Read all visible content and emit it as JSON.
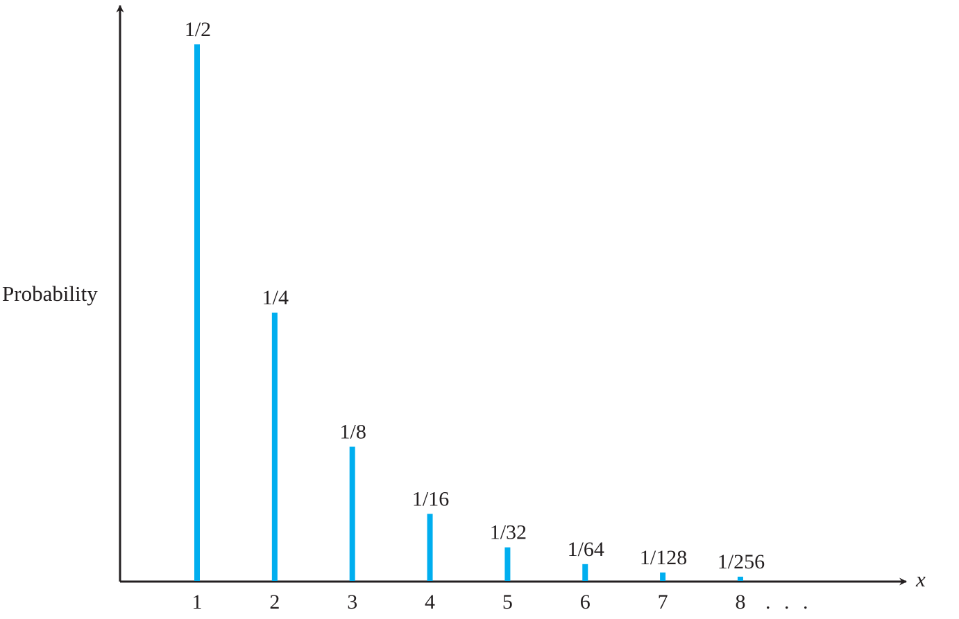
{
  "chart_data": {
    "type": "bar",
    "xlabel": "x",
    "ylabel": "Probability",
    "categories": [
      "1",
      "2",
      "3",
      "4",
      "5",
      "6",
      "7",
      "8"
    ],
    "continuation_marker": ". . .",
    "values": [
      0.5,
      0.25,
      0.125,
      0.0625,
      0.03125,
      0.015625,
      0.0078125,
      0.00390625
    ],
    "data_labels": [
      "1/2",
      "1/4",
      "1/8",
      "1/16",
      "1/32",
      "1/64",
      "1/128",
      "1/256"
    ],
    "ylim": [
      0,
      0.5
    ],
    "grid": false,
    "legend": "none",
    "colors": {
      "bar": "#00aeef",
      "axis": "#231f20",
      "text": "#231f20"
    }
  }
}
